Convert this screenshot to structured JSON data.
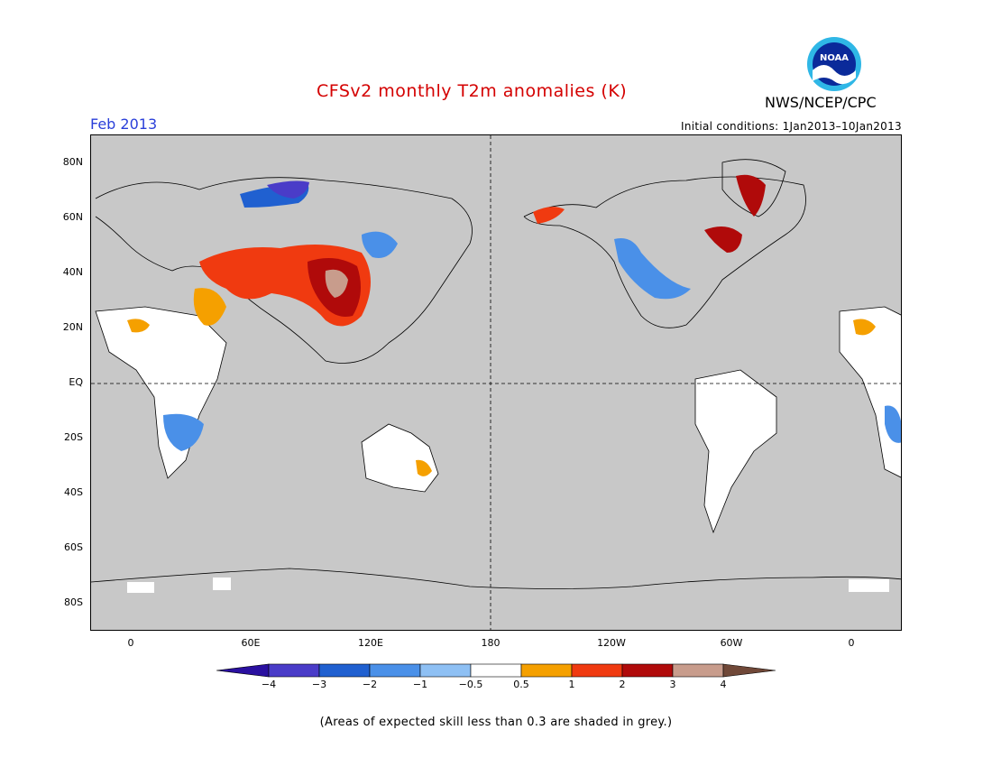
{
  "title": "CFSv2 monthly T2m anomalies (K)",
  "valid_month": "Feb 2013",
  "agency": "NWS/NCEP/CPC",
  "initial_conditions": "Initial conditions: 1Jan2013–10Jan2013",
  "logo": {
    "text": "NOAA",
    "icon": "noaa-logo-icon"
  },
  "map": {
    "projection": "cylindrical, centered on 180",
    "lat_ticks": [
      "80N",
      "60N",
      "40N",
      "20N",
      "EQ",
      "20S",
      "40S",
      "60S",
      "80S"
    ],
    "lon_ticks": [
      "0",
      "60E",
      "120E",
      "180",
      "120W",
      "60W",
      "0"
    ],
    "background_color": "#c8c8c8",
    "regions": [
      {
        "name": "Central Asia / China",
        "anomaly": "warm 1 to 3 K"
      },
      {
        "name": "Middle East",
        "anomaly": "warm 1 to 2 K"
      },
      {
        "name": "Northern Siberia",
        "anomaly": "cold -1 to -3 K"
      },
      {
        "name": "Alaska",
        "anomaly": "warm 1 to 2 K"
      },
      {
        "name": "Greenland",
        "anomaly": "warm 1 to 3 K"
      },
      {
        "name": "Eastern Canada",
        "anomaly": "warm 1 to 3 K"
      },
      {
        "name": "Southern United States",
        "anomaly": "cold -0.5 to -1 K"
      },
      {
        "name": "Southern Africa",
        "anomaly": "cold -1 to -2 K"
      },
      {
        "name": "South America",
        "anomaly": "near normal -0.5 to 0.5 K"
      }
    ]
  },
  "colorbar": {
    "labels": [
      "−4",
      "−3",
      "−2",
      "−1",
      "−0.5",
      "0.5",
      "1",
      "2",
      "3",
      "4"
    ],
    "colors": [
      "#2a10a0",
      "#4a3cc8",
      "#2060d0",
      "#4a90e8",
      "#8ec0f4",
      "#ffffff",
      "#f5a000",
      "#f03a10",
      "#b00a0a",
      "#c89c8c",
      "#704838"
    ]
  },
  "footnote": "(Areas of expected skill less than 0.3 are shaded in grey.)"
}
